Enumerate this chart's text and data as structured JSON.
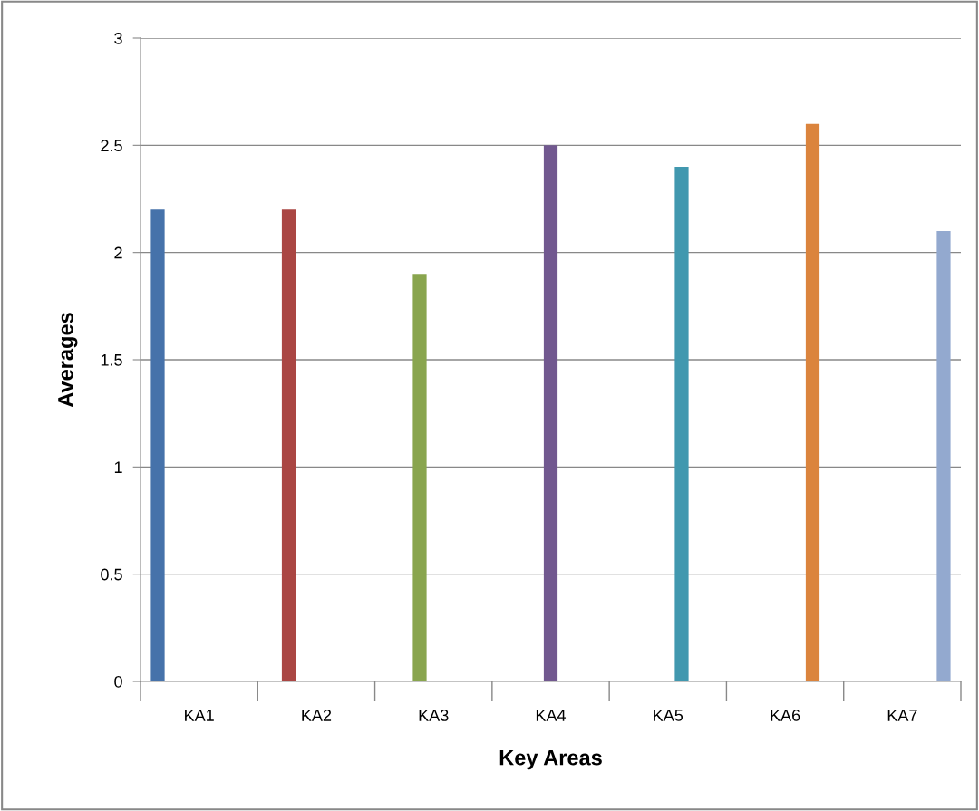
{
  "chart_data": {
    "type": "bar",
    "xlabel": "Key Areas",
    "ylabel": "Averages",
    "categories": [
      "KA1",
      "KA2",
      "KA3",
      "KA4",
      "KA5",
      "KA6",
      "KA7"
    ],
    "values": [
      2.2,
      2.2,
      1.9,
      2.5,
      2.4,
      2.6,
      2.1
    ],
    "colors": [
      "#4672aa",
      "#aa4643",
      "#89a54e",
      "#71588f",
      "#4198af",
      "#db843d",
      "#93a9cf"
    ],
    "ylim": [
      0,
      3
    ],
    "yticks": [
      0,
      0.5,
      1,
      1.5,
      2,
      2.5,
      3
    ],
    "grid": "y"
  }
}
